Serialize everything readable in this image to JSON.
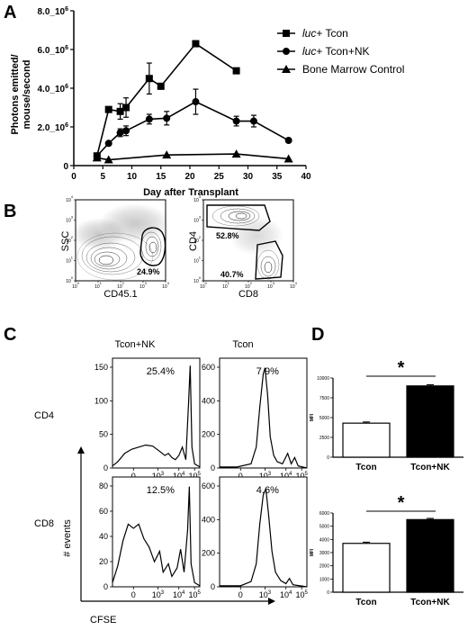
{
  "panels": {
    "a": "A",
    "b": "B",
    "c": "C",
    "d": "D"
  },
  "chart_data": [
    {
      "type": "line",
      "panel": "A",
      "ylabel_lines": [
        "Photons emitted/",
        "mouse/second"
      ],
      "xlabel": "Day after Transplant",
      "xlim": [
        0,
        40
      ],
      "ylim": [
        0,
        8000000
      ],
      "x_ticks": [
        "0",
        "5",
        "10",
        "15",
        "20",
        "25",
        "30",
        "35",
        "40"
      ],
      "y_ticks": [
        {
          "value": 0,
          "label": "0"
        },
        {
          "value": 2000000,
          "label": "2.0_10",
          "exp": "6"
        },
        {
          "value": 4000000,
          "label": "4.0_10",
          "exp": "6"
        },
        {
          "value": 6000000,
          "label": "6.0_10",
          "exp": "6"
        },
        {
          "value": 8000000,
          "label": "8.0_10",
          "exp": "6"
        }
      ],
      "series": [
        {
          "name_italic": "luc",
          "name_rest": "+ Tcon",
          "marker": "square",
          "x": [
            4,
            6,
            8,
            9,
            13,
            15,
            21,
            28
          ],
          "y": [
            500000,
            2900000,
            2800000,
            3000000,
            4500000,
            4100000,
            6300000,
            4900000
          ],
          "err": [
            0,
            0,
            400000,
            500000,
            800000,
            0,
            0,
            0
          ]
        },
        {
          "name_italic": "luc",
          "name_rest": "+ Tcon+NK",
          "marker": "circle",
          "x": [
            4,
            6,
            8,
            9,
            13,
            16,
            21,
            28,
            31,
            37
          ],
          "y": [
            500000,
            1150000,
            1700000,
            1800000,
            2400000,
            2450000,
            3300000,
            2300000,
            2300000,
            1300000
          ],
          "err": [
            0,
            0,
            200000,
            250000,
            250000,
            350000,
            650000,
            250000,
            300000,
            0
          ]
        },
        {
          "name_italic": "",
          "name_rest": "Bone Marrow Control",
          "marker": "triangle",
          "x": [
            4,
            6,
            16,
            28,
            37
          ],
          "y": [
            400000,
            300000,
            550000,
            600000,
            350000
          ],
          "err": [
            0,
            0,
            0,
            0,
            0
          ]
        }
      ]
    },
    {
      "type": "bar",
      "panel": "D-top",
      "categories": [
        "Tcon",
        "Tcon+NK"
      ],
      "values": [
        4300,
        9000
      ],
      "ylabel": "MFI",
      "ylim": [
        0,
        10000
      ],
      "y_ticks": [
        "0",
        "2500",
        "5000",
        "7500",
        "10000"
      ],
      "significance": "*"
    },
    {
      "type": "bar",
      "panel": "D-bottom",
      "categories": [
        "Tcon",
        "Tcon+NK"
      ],
      "values": [
        3700,
        5500
      ],
      "ylabel": "MFI",
      "ylim": [
        0,
        6000
      ],
      "y_ticks": [
        "0",
        "1000",
        "2000",
        "3000",
        "4000",
        "5000",
        "6000"
      ],
      "significance": "*"
    }
  ],
  "panel_b": {
    "plot1": {
      "ylabel": "SSC",
      "xlabel": "CD45.1",
      "gate_pct": "24.9%"
    },
    "plot2": {
      "ylabel": "CD4",
      "xlabel": "CD8",
      "gate_pct_upper": "52.8%",
      "gate_pct_lower": "40.7%"
    },
    "decade_labels": [
      "10",
      "10",
      "10",
      "10",
      "10"
    ],
    "decade_exps": [
      "0",
      "1",
      "2",
      "3",
      "4"
    ]
  },
  "panel_c": {
    "col_labels": [
      "Tcon+NK",
      "Tcon"
    ],
    "row_labels": [
      "CD4",
      "CD8"
    ],
    "ylabel": "# events",
    "xlabel": "CFSE",
    "x_ticks": [
      "0",
      "10",
      "10",
      "10"
    ],
    "x_tick_exps": [
      "",
      "3",
      "4",
      "5"
    ],
    "hist": [
      {
        "pct": "25.4%",
        "y_ticks": [
          "0",
          "50",
          "100",
          "150"
        ]
      },
      {
        "pct": "7.9%",
        "y_ticks": [
          "0",
          "200",
          "400",
          "600"
        ]
      },
      {
        "pct": "12.5%",
        "y_ticks": [
          "0",
          "20",
          "40",
          "60",
          "80"
        ]
      },
      {
        "pct": "4.6%",
        "y_ticks": [
          "0",
          "200",
          "400",
          "600"
        ]
      }
    ]
  }
}
